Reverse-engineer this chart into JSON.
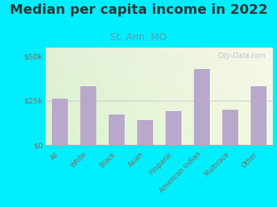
{
  "title": "Median per capita income in 2022",
  "subtitle": "St. Ann, MO",
  "categories": [
    "All",
    "White",
    "Black",
    "Asian",
    "Hispanic",
    "American Indian",
    "Multirace",
    "Other"
  ],
  "values": [
    26000,
    33000,
    17000,
    14000,
    19000,
    43000,
    20000,
    33000
  ],
  "bar_color": "#b8a8cc",
  "background_outer": "#00eeff",
  "yticks": [
    0,
    25000,
    50000
  ],
  "ytick_labels": [
    "$0",
    "$25k",
    "$50k"
  ],
  "ylim": [
    0,
    55000
  ],
  "title_fontsize": 14,
  "title_color": "#333333",
  "subtitle_fontsize": 10,
  "subtitle_color": "#6699aa",
  "watermark": "City-Data.com",
  "watermark_color": "#aabbcc",
  "tick_label_color": "#886655",
  "ytick_label_color": "#886655"
}
